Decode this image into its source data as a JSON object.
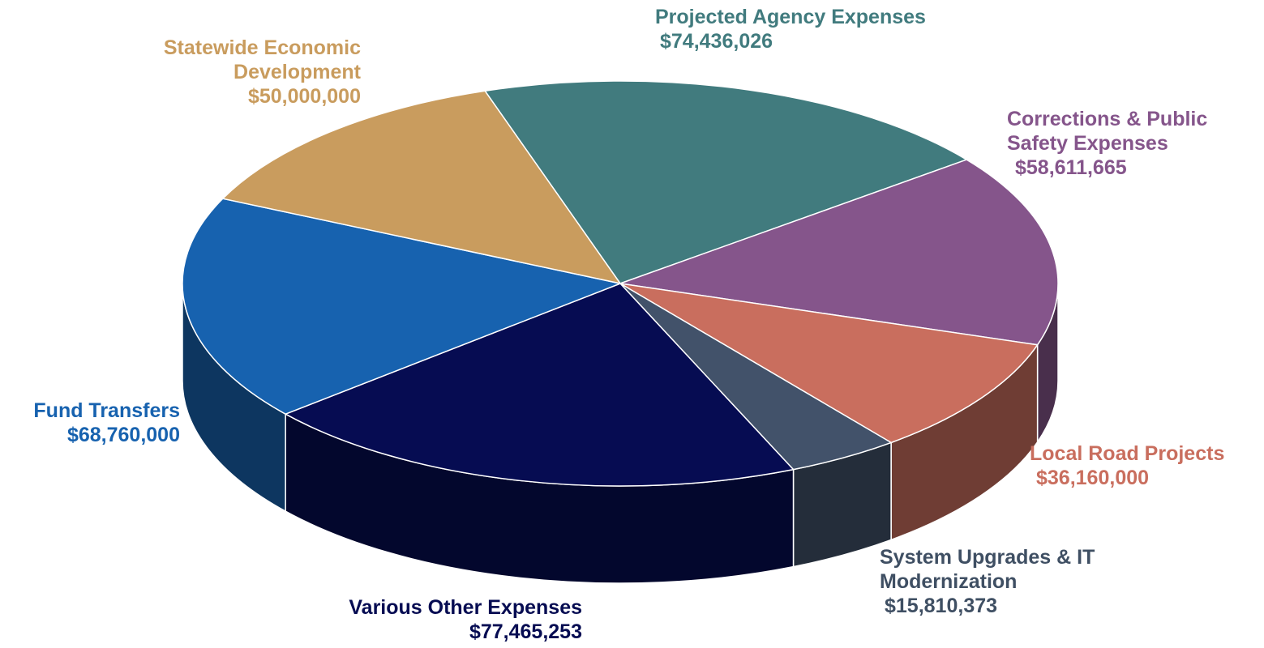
{
  "chart_data": {
    "type": "pie3d",
    "categories": [
      "Projected Agency Expenses",
      "Corrections & Public Safety Expenses",
      "Local Road Projects",
      "System Upgrades & IT Modernization",
      "Various Other Expenses",
      "Fund Transfers",
      "Statewide Economic Development"
    ],
    "values": [
      74436026,
      58611665,
      36160000,
      15810373,
      77465253,
      68760000,
      50000000
    ],
    "value_labels": [
      "$74,436,026",
      "$58,611,665",
      "$36,160,000",
      "$15,810,373",
      "$77,465,253",
      "$68,760,000",
      "$50,000,000"
    ],
    "colors": [
      "#417b7e",
      "#85558b",
      "#c96e5e",
      "#42526a",
      "#060c52",
      "#1762af",
      "#c99c5e"
    ]
  }
}
